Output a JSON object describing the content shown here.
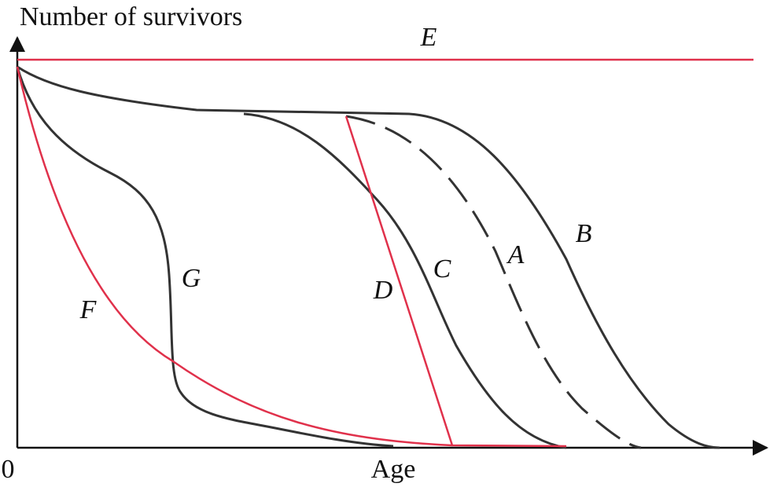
{
  "y_axis": {
    "label": "Number of survivors"
  },
  "x_axis": {
    "label": "Age",
    "origin": "0"
  },
  "curves": [
    {
      "label": "A"
    },
    {
      "label": "B"
    },
    {
      "label": "C"
    },
    {
      "label": "D"
    },
    {
      "label": "E"
    },
    {
      "label": "F"
    },
    {
      "label": "G"
    }
  ]
}
